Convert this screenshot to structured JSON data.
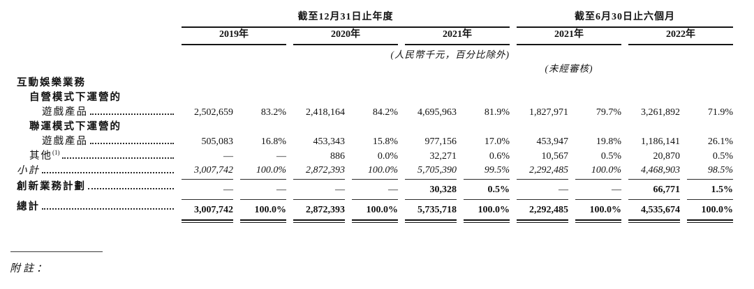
{
  "table": {
    "period_annual": "截至12月31日止年度",
    "period_interim": "截至6月30日止六個月",
    "years": [
      "2019年",
      "2020年",
      "2021年",
      "2021年",
      "2022年"
    ],
    "unit_note": "(人民幣千元，百分比除外)",
    "unaudited_note": "(未經審核)",
    "rows": {
      "segment_header": "互動娛樂業務",
      "self_operated": {
        "label_line1": "自營模式下運營的",
        "label_line2": "遊戲產品",
        "cells": [
          "2,502,659",
          "83.2%",
          "2,418,164",
          "84.2%",
          "4,695,963",
          "81.9%",
          "1,827,971",
          "79.7%",
          "3,261,892",
          "71.9%"
        ]
      },
      "joint_operated": {
        "label_line1": "聯運模式下運營的",
        "label_line2": "遊戲產品",
        "cells": [
          "505,083",
          "16.8%",
          "453,343",
          "15.8%",
          "977,156",
          "17.0%",
          "453,947",
          "19.8%",
          "1,186,141",
          "26.1%"
        ]
      },
      "others": {
        "label": "其他",
        "footnote_marker": "(1)",
        "cells": [
          "—",
          "—",
          "886",
          "0.0%",
          "32,271",
          "0.6%",
          "10,567",
          "0.5%",
          "20,870",
          "0.5%"
        ]
      },
      "subtotal": {
        "label": "小計",
        "cells": [
          "3,007,742",
          "100.0%",
          "2,872,393",
          "100.0%",
          "5,705,390",
          "99.5%",
          "2,292,485",
          "100.0%",
          "4,468,903",
          "98.5%"
        ]
      },
      "innovation": {
        "label": "創新業務計劃",
        "cells": [
          "—",
          "—",
          "—",
          "—",
          "30,328",
          "0.5%",
          "—",
          "—",
          "66,771",
          "1.5%"
        ]
      },
      "total": {
        "label": "總計",
        "cells": [
          "3,007,742",
          "100.0%",
          "2,872,393",
          "100.0%",
          "5,735,718",
          "100.0%",
          "2,292,485",
          "100.0%",
          "4,535,674",
          "100.0%"
        ]
      }
    }
  },
  "footnote": {
    "label": "附註："
  }
}
